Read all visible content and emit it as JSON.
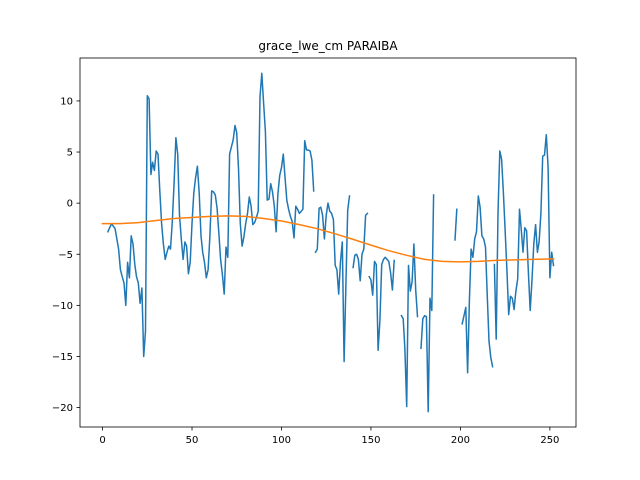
{
  "chart_data": {
    "type": "line",
    "title": "grace_lwe_cm PARAIBA",
    "xlabel": "",
    "ylabel": "",
    "xlim": [
      -12.6,
      264.6
    ],
    "ylim": [
      -21.9,
      14.2
    ],
    "xticks": [
      0,
      50,
      100,
      150,
      200,
      250
    ],
    "yticks": [
      -20,
      -15,
      -10,
      -5,
      0,
      5,
      10
    ],
    "grid": false,
    "legend": "none",
    "series": [
      {
        "color": "#1f77b4",
        "segments": [
          [
            [
              3,
              -2.8
            ],
            [
              5,
              -2.0
            ],
            [
              7,
              -2.5
            ],
            [
              9,
              -4.5
            ],
            [
              10,
              -6.5
            ],
            [
              11,
              -7.2
            ],
            [
              12,
              -7.8
            ],
            [
              13,
              -10.0
            ],
            [
              14,
              -5.8
            ],
            [
              15,
              -7.3
            ],
            [
              16,
              -3.2
            ],
            [
              17,
              -4.0
            ],
            [
              18,
              -6.0
            ],
            [
              19,
              -7.2
            ],
            [
              20,
              -7.8
            ],
            [
              21,
              -9.8
            ],
            [
              22,
              -8.3
            ],
            [
              23,
              -15.0
            ],
            [
              24,
              -12.5
            ],
            [
              25,
              10.5
            ],
            [
              26,
              10.2
            ],
            [
              27,
              2.8
            ],
            [
              28,
              4.0
            ],
            [
              29,
              3.2
            ],
            [
              30,
              5.1
            ],
            [
              31,
              4.8
            ],
            [
              32,
              1.2
            ],
            [
              33,
              -2.0
            ],
            [
              34,
              -4.0
            ],
            [
              35,
              -5.5
            ],
            [
              36,
              -4.8
            ],
            [
              37,
              -4.2
            ],
            [
              38,
              -4.5
            ],
            [
              39,
              -1.8
            ],
            [
              40,
              2.0
            ],
            [
              41,
              6.4
            ],
            [
              42,
              4.8
            ],
            [
              43,
              -1.2
            ],
            [
              44,
              -3.5
            ],
            [
              45,
              -5.5
            ],
            [
              46,
              -3.8
            ],
            [
              47,
              -4.2
            ],
            [
              48,
              -6.9
            ],
            [
              49,
              -5.8
            ],
            [
              50,
              -2.0
            ],
            [
              51,
              1.0
            ],
            [
              52,
              2.5
            ],
            [
              53,
              3.6
            ],
            [
              54,
              1.0
            ],
            [
              55,
              -3.2
            ],
            [
              56,
              -4.8
            ],
            [
              57,
              -5.8
            ],
            [
              58,
              -7.3
            ],
            [
              59,
              -6.5
            ],
            [
              60,
              -3.2
            ],
            [
              61,
              1.2
            ],
            [
              62,
              1.1
            ],
            [
              63,
              0.8
            ],
            [
              64,
              -0.5
            ],
            [
              65,
              -3.0
            ],
            [
              66,
              -5.5
            ],
            [
              67,
              -7.0
            ],
            [
              68,
              -8.9
            ],
            [
              69,
              -4.3
            ],
            [
              70,
              -5.3
            ],
            [
              71,
              4.8
            ],
            [
              72,
              5.5
            ],
            [
              73,
              6.2
            ],
            [
              74,
              7.6
            ],
            [
              75,
              6.9
            ],
            [
              76,
              3.4
            ],
            [
              77,
              -2.0
            ],
            [
              78,
              -4.2
            ],
            [
              79,
              -3.3
            ],
            [
              80,
              -2.0
            ],
            [
              81,
              -1.0
            ],
            [
              82,
              0.6
            ],
            [
              83,
              -0.3
            ],
            [
              84,
              -2.1
            ],
            [
              85,
              -1.9
            ],
            [
              86,
              -1.4
            ],
            [
              87,
              -0.8
            ],
            [
              88,
              10.4
            ],
            [
              89,
              12.7
            ],
            [
              90,
              9.8
            ],
            [
              91,
              7.0
            ],
            [
              92,
              0.3
            ],
            [
              93,
              0.4
            ],
            [
              94,
              1.9
            ],
            [
              95,
              1.1
            ],
            [
              96,
              -0.3
            ],
            [
              97,
              -2.8
            ],
            [
              98,
              0.9
            ],
            [
              99,
              2.7
            ],
            [
              100,
              3.5
            ],
            [
              101,
              4.8
            ],
            [
              102,
              2.4
            ],
            [
              103,
              0.3
            ],
            [
              104,
              -0.6
            ],
            [
              105,
              -1.3
            ],
            [
              106,
              -1.8
            ],
            [
              107,
              -3.4
            ],
            [
              108,
              -0.3
            ],
            [
              109,
              -0.6
            ],
            [
              110,
              -1.0
            ],
            [
              111,
              -0.8
            ],
            [
              112,
              -0.6
            ],
            [
              113,
              6.1
            ],
            [
              114,
              5.2
            ],
            [
              115,
              5.2
            ],
            [
              116,
              5.1
            ],
            [
              117,
              4.2
            ],
            [
              118,
              1.2
            ]
          ],
          [
            [
              119,
              -4.8
            ],
            [
              120,
              -4.5
            ],
            [
              121,
              -0.5
            ],
            [
              122,
              -0.4
            ],
            [
              123,
              -1.2
            ],
            [
              124,
              -3.5
            ],
            [
              125,
              -1.2
            ],
            [
              126,
              0.0
            ],
            [
              127,
              -0.8
            ],
            [
              128,
              -1.0
            ],
            [
              129,
              -1.6
            ],
            [
              130,
              -6.1
            ],
            [
              131,
              -6.5
            ],
            [
              132,
              -8.9
            ],
            [
              133,
              -5.7
            ],
            [
              134,
              -3.8
            ],
            [
              135,
              -15.5
            ],
            [
              136,
              -8.0
            ],
            [
              137,
              -0.7
            ],
            [
              138,
              0.7
            ]
          ],
          [
            [
              140,
              -6.3
            ],
            [
              141,
              -5.1
            ],
            [
              142,
              -5.0
            ],
            [
              143,
              -5.5
            ],
            [
              144,
              -7.6
            ],
            [
              145,
              -5.0
            ],
            [
              146,
              -4.5
            ],
            [
              147,
              -1.2
            ],
            [
              148,
              -1.0
            ]
          ],
          [
            [
              149,
              -7.2
            ],
            [
              150,
              -7.5
            ],
            [
              151,
              -9.0
            ],
            [
              152,
              -5.7
            ],
            [
              153,
              -6.0
            ],
            [
              154,
              -14.4
            ],
            [
              155,
              -11.5
            ],
            [
              156,
              -6.0
            ],
            [
              157,
              -5.5
            ],
            [
              158,
              -5.3
            ],
            [
              159,
              -5.5
            ],
            [
              160,
              -5.7
            ],
            [
              161,
              -6.8
            ],
            [
              162,
              -8.5
            ],
            [
              163,
              -5.6
            ]
          ],
          [
            [
              167,
              -11.0
            ],
            [
              168,
              -11.3
            ],
            [
              169,
              -14.3
            ],
            [
              170,
              -19.9
            ],
            [
              171,
              -6.1
            ],
            [
              172,
              -8.6
            ],
            [
              173,
              -7.7
            ],
            [
              174,
              -4.0
            ],
            [
              175,
              -8.5
            ],
            [
              176,
              -11.1
            ]
          ],
          [
            [
              178,
              -14.2
            ],
            [
              179,
              -11.3
            ],
            [
              180,
              -11.0
            ],
            [
              181,
              -11.1
            ],
            [
              182,
              -20.4
            ],
            [
              183,
              -9.3
            ],
            [
              184,
              -10.5
            ],
            [
              185,
              0.8
            ]
          ],
          [
            [
              197,
              -3.6
            ],
            [
              198,
              -0.6
            ]
          ],
          [
            [
              201,
              -11.8
            ],
            [
              202,
              -11.0
            ],
            [
              203,
              -10.2
            ],
            [
              204,
              -16.6
            ],
            [
              205,
              -9.5
            ],
            [
              206,
              -4.5
            ],
            [
              207,
              -5.3
            ],
            [
              208,
              -3.5
            ],
            [
              209,
              -2.8
            ],
            [
              210,
              0.7
            ],
            [
              211,
              -0.4
            ],
            [
              212,
              -3.2
            ],
            [
              213,
              -3.5
            ],
            [
              214,
              -4.3
            ],
            [
              215,
              -8.9
            ],
            [
              216,
              -13.5
            ],
            [
              217,
              -15.1
            ],
            [
              218,
              -16.0
            ]
          ],
          [
            [
              219,
              -6.0
            ],
            [
              220,
              -13.3
            ],
            [
              221,
              -1.0
            ],
            [
              222,
              5.1
            ],
            [
              223,
              4.3
            ],
            [
              224,
              1.0
            ],
            [
              225,
              -2.6
            ],
            [
              226,
              -6.5
            ],
            [
              227,
              -10.9
            ],
            [
              228,
              -9.1
            ],
            [
              229,
              -9.3
            ],
            [
              230,
              -10.4
            ],
            [
              231,
              -8.6
            ],
            [
              232,
              -7.4
            ],
            [
              233,
              -0.6
            ],
            [
              234,
              -2.5
            ],
            [
              235,
              -4.8
            ],
            [
              236,
              -2.4
            ],
            [
              237,
              -2.7
            ],
            [
              238,
              -6.8
            ],
            [
              239,
              -10.5
            ],
            [
              240,
              -7.5
            ],
            [
              241,
              -4.0
            ],
            [
              242,
              -2.1
            ],
            [
              243,
              -4.8
            ],
            [
              244,
              -3.8
            ],
            [
              245,
              -1.0
            ],
            [
              246,
              4.6
            ],
            [
              247,
              4.7
            ],
            [
              248,
              6.7
            ],
            [
              249,
              3.5
            ],
            [
              250,
              -7.3
            ],
            [
              251,
              -4.8
            ],
            [
              252,
              -6.1
            ]
          ]
        ]
      },
      {
        "color": "#ff7f0e",
        "segments": [
          [
            [
              0,
              -2.0
            ],
            [
              10,
              -2.0
            ],
            [
              20,
              -1.9
            ],
            [
              30,
              -1.7
            ],
            [
              40,
              -1.5
            ],
            [
              50,
              -1.4
            ],
            [
              60,
              -1.3
            ],
            [
              70,
              -1.25
            ],
            [
              80,
              -1.3
            ],
            [
              90,
              -1.5
            ],
            [
              100,
              -1.75
            ],
            [
              110,
              -2.1
            ],
            [
              120,
              -2.5
            ],
            [
              130,
              -3.0
            ],
            [
              140,
              -3.55
            ],
            [
              150,
              -4.1
            ],
            [
              160,
              -4.65
            ],
            [
              170,
              -5.1
            ],
            [
              180,
              -5.5
            ],
            [
              190,
              -5.7
            ],
            [
              200,
              -5.75
            ],
            [
              210,
              -5.7
            ],
            [
              220,
              -5.6
            ],
            [
              230,
              -5.55
            ],
            [
              240,
              -5.5
            ],
            [
              252,
              -5.45
            ]
          ]
        ]
      }
    ]
  }
}
